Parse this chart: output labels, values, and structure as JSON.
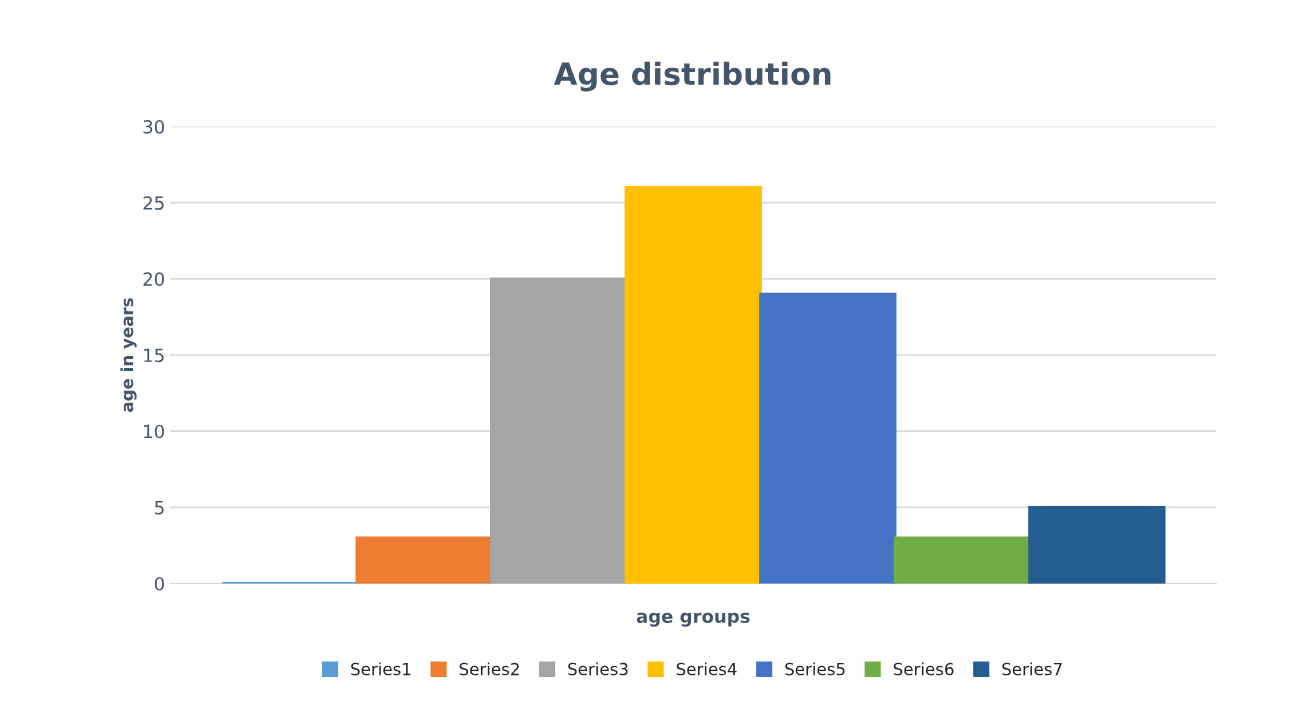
{
  "chart_data": {
    "type": "bar",
    "title": "Age distribution",
    "xlabel": "age groups",
    "ylabel": "age in years",
    "categories": [
      null
    ],
    "series": [
      {
        "name": "Series1",
        "color": "#5b9bd5",
        "values": [
          0
        ]
      },
      {
        "name": "Series2",
        "color": "#ed7d31",
        "values": [
          3
        ]
      },
      {
        "name": "Series3",
        "color": "#a5a5a5",
        "values": [
          20
        ]
      },
      {
        "name": "Series4",
        "color": "#ffc000",
        "values": [
          26
        ]
      },
      {
        "name": "Series5",
        "color": "#4472c4",
        "values": [
          19
        ]
      },
      {
        "name": "Series6",
        "color": "#70ad47",
        "values": [
          3
        ]
      },
      {
        "name": "Series7",
        "color": "#255e91",
        "values": [
          5
        ]
      }
    ],
    "ylim": [
      0,
      30
    ],
    "yticks": [
      0,
      5,
      10,
      15,
      20,
      25,
      30
    ],
    "grid": "y",
    "legend": "bottom"
  }
}
